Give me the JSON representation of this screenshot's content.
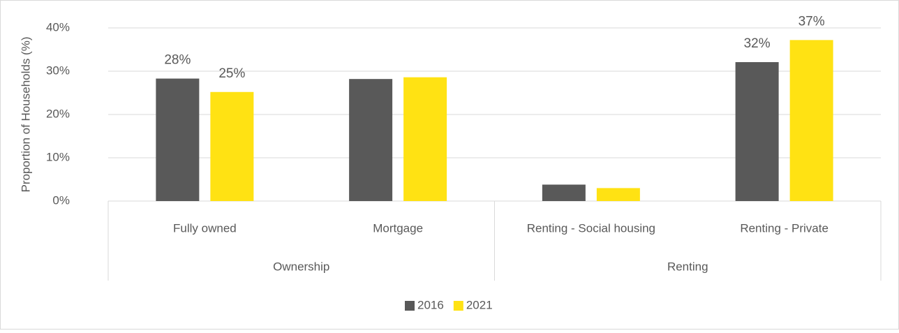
{
  "chart_data": {
    "type": "bar",
    "y_label": "Proportion of Households (%)",
    "categories": [
      "Fully owned",
      "Mortgage",
      "Renting - Social housing",
      "Renting - Private"
    ],
    "groups": [
      "Ownership",
      "Ownership",
      "Renting",
      "Renting"
    ],
    "series": [
      {
        "name": "2016",
        "color": "#595959",
        "values": [
          28.3,
          28.2,
          3.8,
          32.1
        ],
        "value_labels": [
          "28%",
          null,
          null,
          "32%"
        ]
      },
      {
        "name": "2021",
        "color": "#ffe213",
        "values": [
          25.2,
          28.6,
          3.0,
          37.2
        ],
        "value_labels": [
          "25%",
          null,
          null,
          "37%"
        ]
      }
    ],
    "ylim": [
      0,
      40
    ],
    "yticks": [
      {
        "value": 0,
        "label": "0%"
      },
      {
        "value": 10,
        "label": "10%"
      },
      {
        "value": 20,
        "label": "20%"
      },
      {
        "value": 30,
        "label": "30%"
      },
      {
        "value": 40,
        "label": "40%"
      }
    ],
    "grid": true,
    "legend": "bottom"
  }
}
